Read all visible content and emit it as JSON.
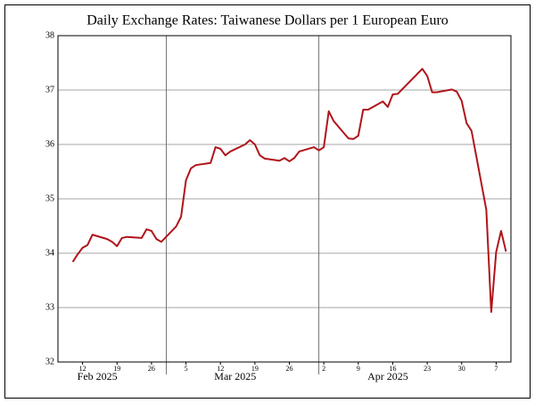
{
  "chart_data": {
    "type": "line",
    "title": "Daily Exchange Rates: Taiwanese Dollars per 1 European Euro",
    "x": [
      "2025-02-10",
      "2025-02-11",
      "2025-02-12",
      "2025-02-13",
      "2025-02-14",
      "2025-02-17",
      "2025-02-18",
      "2025-02-19",
      "2025-02-20",
      "2025-02-21",
      "2025-02-24",
      "2025-02-25",
      "2025-02-26",
      "2025-02-27",
      "2025-02-28",
      "2025-03-03",
      "2025-03-04",
      "2025-03-05",
      "2025-03-06",
      "2025-03-07",
      "2025-03-10",
      "2025-03-11",
      "2025-03-12",
      "2025-03-13",
      "2025-03-14",
      "2025-03-17",
      "2025-03-18",
      "2025-03-19",
      "2025-03-20",
      "2025-03-21",
      "2025-03-24",
      "2025-03-25",
      "2025-03-26",
      "2025-03-27",
      "2025-03-28",
      "2025-03-31",
      "2025-04-01",
      "2025-04-02",
      "2025-04-03",
      "2025-04-04",
      "2025-04-07",
      "2025-04-08",
      "2025-04-09",
      "2025-04-10",
      "2025-04-11",
      "2025-04-14",
      "2025-04-15",
      "2025-04-16",
      "2025-04-17",
      "2025-04-22",
      "2025-04-23",
      "2025-04-24",
      "2025-04-25",
      "2025-04-28",
      "2025-04-29",
      "2025-04-30",
      "2025-05-01",
      "2025-05-02",
      "2025-05-05",
      "2025-05-06",
      "2025-05-07",
      "2025-05-08",
      "2025-05-09"
    ],
    "series": [
      {
        "name": "TWD per EUR",
        "color": "#b0141a",
        "values": [
          33.84,
          33.98,
          34.1,
          34.15,
          34.34,
          34.26,
          34.21,
          34.13,
          34.28,
          34.3,
          34.28,
          34.44,
          34.41,
          34.26,
          34.21,
          34.49,
          34.67,
          35.34,
          35.56,
          35.62,
          35.66,
          35.95,
          35.92,
          35.8,
          35.87,
          36.0,
          36.08,
          36.0,
          35.8,
          35.74,
          35.7,
          35.75,
          35.69,
          35.75,
          35.87,
          35.95,
          35.89,
          35.95,
          36.61,
          36.43,
          36.11,
          36.1,
          36.16,
          36.64,
          36.64,
          36.79,
          36.69,
          36.92,
          36.93,
          37.39,
          37.26,
          36.96,
          36.96,
          37.01,
          36.97,
          36.8,
          36.39,
          36.25,
          34.8,
          32.92,
          34.02,
          34.41,
          34.03
        ]
      }
    ],
    "xlim": [
      "2025-02-07",
      "2025-05-10"
    ],
    "ylim": [
      32,
      38
    ],
    "yticks": [
      32,
      33,
      34,
      35,
      36,
      37,
      38
    ],
    "xticks": [
      {
        "value": "2025-02-12",
        "label": "12"
      },
      {
        "value": "2025-02-19",
        "label": "19"
      },
      {
        "value": "2025-02-26",
        "label": "26"
      },
      {
        "value": "2025-03-05",
        "label": "5"
      },
      {
        "value": "2025-03-12",
        "label": "12"
      },
      {
        "value": "2025-03-19",
        "label": "19"
      },
      {
        "value": "2025-03-26",
        "label": "26"
      },
      {
        "value": "2025-04-02",
        "label": "2"
      },
      {
        "value": "2025-04-09",
        "label": "9"
      },
      {
        "value": "2025-04-16",
        "label": "16"
      },
      {
        "value": "2025-04-23",
        "label": "23"
      },
      {
        "value": "2025-04-30",
        "label": "30"
      },
      {
        "value": "2025-05-07",
        "label": "7"
      }
    ],
    "month_labels": [
      {
        "value": "2025-02-15",
        "label": "Feb 2025"
      },
      {
        "value": "2025-03-15",
        "label": "Mar 2025"
      },
      {
        "value": "2025-04-15",
        "label": "Apr 2025"
      }
    ],
    "xgrid": [
      "2025-03-01",
      "2025-04-01"
    ],
    "grid": true
  }
}
